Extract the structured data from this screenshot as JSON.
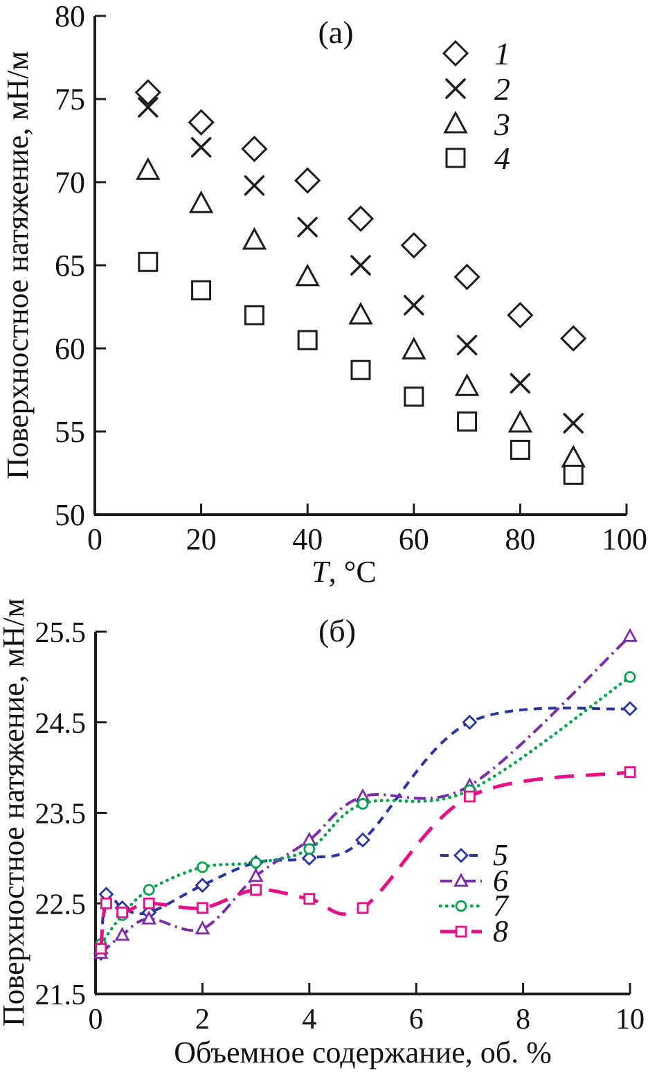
{
  "figure": {
    "panel_a_title": "(а)",
    "panel_b_title": "(б)"
  },
  "chart_data": [
    {
      "type": "scatter",
      "title": "(а)",
      "xlabel": "T, °C",
      "xlabel_parts": [
        "T",
        ", °C"
      ],
      "ylabel": "Поверхностное натяжение, мН/м",
      "xlim": [
        0,
        100
      ],
      "ylim": [
        50,
        80
      ],
      "xticks": [
        "0",
        "20",
        "40",
        "60",
        "80",
        "100"
      ],
      "xtick_values": [
        0,
        20,
        40,
        60,
        80,
        100
      ],
      "yticks": [
        "80",
        "75",
        "70",
        "65",
        "60",
        "55",
        "50"
      ],
      "ytick_values": [
        80,
        75,
        70,
        65,
        60,
        55,
        50
      ],
      "grid": false,
      "legend_position": "top-right",
      "marker_color": "#1c1c1c",
      "x": [
        10,
        20,
        30,
        40,
        50,
        60,
        70,
        80,
        90
      ],
      "series": [
        {
          "name": "1",
          "marker": "diamond",
          "values": [
            75.4,
            73.6,
            72.0,
            70.1,
            67.8,
            66.2,
            64.3,
            62.0,
            60.6
          ]
        },
        {
          "name": "2",
          "marker": "x",
          "values": [
            74.5,
            72.1,
            69.8,
            67.3,
            65.0,
            62.6,
            60.2,
            57.9,
            55.5
          ]
        },
        {
          "name": "3",
          "marker": "triangle",
          "values": [
            70.7,
            68.7,
            66.5,
            64.3,
            62.0,
            59.9,
            57.7,
            55.5,
            53.4
          ]
        },
        {
          "name": "4",
          "marker": "square",
          "values": [
            65.2,
            63.5,
            62.0,
            60.5,
            58.7,
            57.1,
            55.6,
            53.9,
            52.4
          ]
        }
      ]
    },
    {
      "type": "line",
      "title": "(б)",
      "xlabel": "Объемное содержание, об. %",
      "ylabel": "Поверхностное натяжение, мН/м",
      "xlim": [
        0,
        10
      ],
      "ylim": [
        21.5,
        25.5
      ],
      "xticks": [
        "0",
        "2",
        "4",
        "6",
        "8",
        "10"
      ],
      "xtick_values": [
        0,
        2,
        4,
        6,
        8,
        10
      ],
      "yticks": [
        "25.5",
        "24.5",
        "23.5",
        "22.5",
        "21.5"
      ],
      "ytick_values": [
        25.5,
        24.5,
        23.5,
        22.5,
        21.5
      ],
      "grid": false,
      "legend_position": "inside-right",
      "series": [
        {
          "name": "5",
          "marker": "diamond",
          "color": "#2b35a0",
          "dash": "dashed",
          "x": [
            0.1,
            0.2,
            0.5,
            1,
            2,
            3,
            4,
            5,
            7,
            10
          ],
          "y": [
            21.95,
            22.6,
            22.45,
            22.4,
            22.7,
            22.95,
            23.0,
            23.2,
            24.5,
            24.65
          ]
        },
        {
          "name": "6",
          "marker": "triangle",
          "color": "#7a2da6",
          "dash": "dashdot",
          "x": [
            0.1,
            0.5,
            1,
            2,
            3,
            4,
            5,
            7,
            10
          ],
          "y": [
            21.95,
            22.15,
            22.33,
            22.22,
            22.8,
            23.2,
            23.68,
            23.8,
            25.45
          ]
        },
        {
          "name": "7",
          "marker": "circle",
          "color": "#00a24c",
          "dash": "dotted",
          "x": [
            0.1,
            0.5,
            1,
            2,
            3,
            4,
            5,
            7,
            10
          ],
          "y": [
            22.05,
            22.37,
            22.65,
            22.9,
            22.95,
            23.1,
            23.6,
            23.75,
            25.0
          ]
        },
        {
          "name": "8",
          "marker": "square",
          "color": "#ea0e85",
          "dash": "longdash",
          "x": [
            0.1,
            0.2,
            0.5,
            1,
            2,
            3,
            4,
            5,
            7,
            10
          ],
          "y": [
            22.0,
            22.5,
            22.4,
            22.5,
            22.45,
            22.65,
            22.55,
            22.45,
            23.68,
            23.95
          ]
        }
      ]
    }
  ]
}
